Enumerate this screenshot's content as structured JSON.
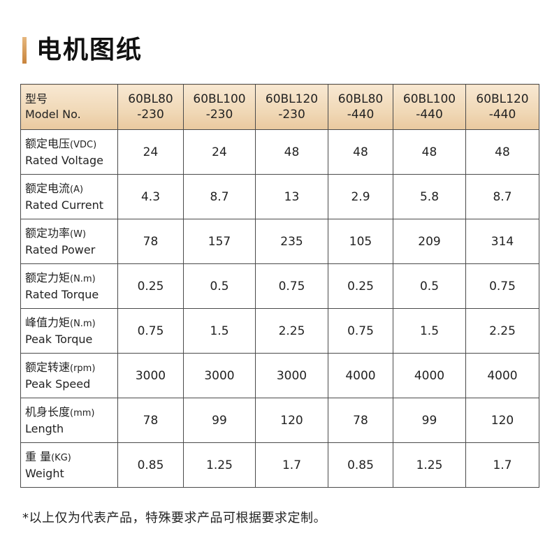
{
  "title": "电机图纸",
  "colors": {
    "accent_top": "#e6b77e",
    "accent_bottom": "#c8843c",
    "header_bg": "#f0d8b6",
    "border": "#4a4a4a"
  },
  "table": {
    "header": {
      "label_cn": "型号",
      "label_en": "Model No.",
      "models": [
        {
          "line1": "60BL80",
          "line2": "-230"
        },
        {
          "line1": "60BL100",
          "line2": "-230"
        },
        {
          "line1": "60BL120",
          "line2": "-230"
        },
        {
          "line1": "60BL80",
          "line2": "-440"
        },
        {
          "line1": "60BL100",
          "line2": "-440"
        },
        {
          "line1": "60BL120",
          "line2": "-440"
        }
      ]
    },
    "rows": [
      {
        "cn": "额定电压",
        "unit": "(VDC)",
        "en": "Rated Voltage",
        "values": [
          "24",
          "24",
          "48",
          "48",
          "48",
          "48"
        ]
      },
      {
        "cn": "额定电流",
        "unit": "(A)",
        "en": "Rated Current",
        "values": [
          "4.3",
          "8.7",
          "13",
          "2.9",
          "5.8",
          "8.7"
        ]
      },
      {
        "cn": "额定功率",
        "unit": "(W)",
        "en": "Rated Power",
        "values": [
          "78",
          "157",
          "235",
          "105",
          "209",
          "314"
        ]
      },
      {
        "cn": "额定力矩",
        "unit": "(N.m)",
        "en": "Rated Torque",
        "values": [
          "0.25",
          "0.5",
          "0.75",
          "0.25",
          "0.5",
          "0.75"
        ]
      },
      {
        "cn": "峰值力矩",
        "unit": "(N.m)",
        "en": "Peak Torque",
        "values": [
          "0.75",
          "1.5",
          "2.25",
          "0.75",
          "1.5",
          "2.25"
        ]
      },
      {
        "cn": "额定转速",
        "unit": "(rpm)",
        "en": "Peak Speed",
        "values": [
          "3000",
          "3000",
          "3000",
          "4000",
          "4000",
          "4000"
        ]
      },
      {
        "cn": "机身长度",
        "unit": "(mm)",
        "en": "Length",
        "values": [
          "78",
          "99",
          "120",
          "78",
          "99",
          "120"
        ]
      },
      {
        "cn": "重 量",
        "unit": "(KG)",
        "en": "Weight",
        "values": [
          "0.85",
          "1.25",
          "1.7",
          "0.85",
          "1.25",
          "1.7"
        ]
      }
    ]
  },
  "footnote": "*以上仅为代表产品，特殊要求产品可根据要求定制。"
}
